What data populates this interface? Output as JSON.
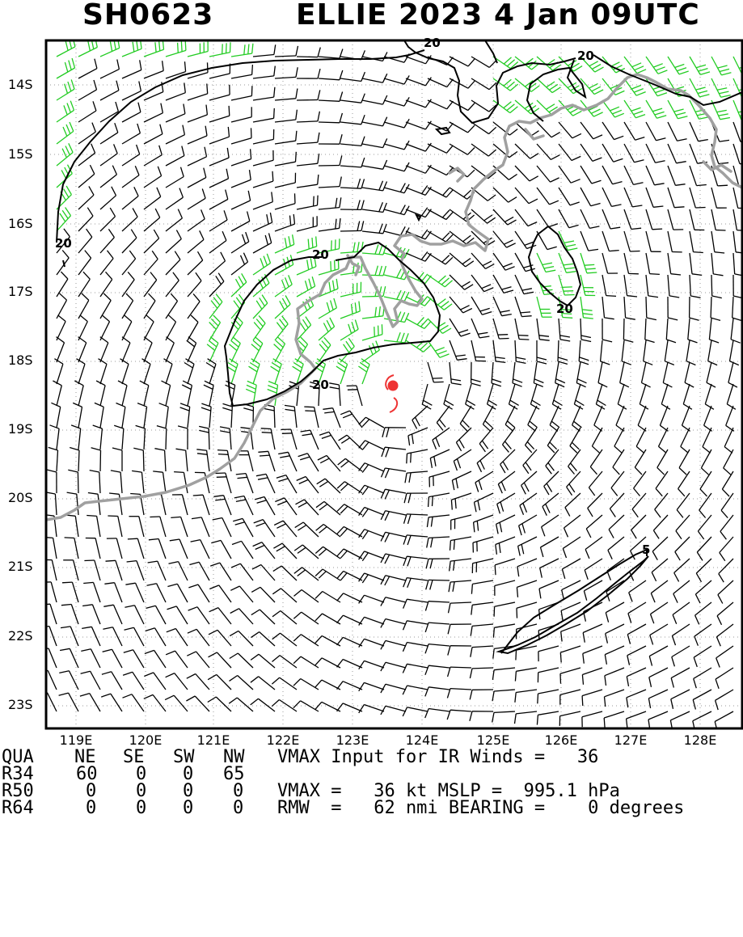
{
  "title": {
    "storm_id": "SH0623",
    "name_year": "ELLIE 2023",
    "date_time": "4 Jan 09UTC"
  },
  "map": {
    "lat_labels": [
      "14S",
      "15S",
      "16S",
      "17S",
      "18S",
      "19S",
      "20S",
      "21S",
      "22S",
      "23S"
    ],
    "lon_labels": [
      "119E",
      "120E",
      "121E",
      "122E",
      "123E",
      "124E",
      "125E",
      "126E",
      "127E",
      "128E"
    ],
    "contour_labels": [
      "20",
      "20",
      "20",
      "20",
      "20",
      "20",
      "5"
    ],
    "colors": {
      "frame": "#000000",
      "coastline": "#a0a0a0",
      "barb_strong": "#22cc22",
      "barb_weak": "#000000",
      "contour": "#000000",
      "storm_symbol": "#ee3333",
      "grid": "#9a9a9a"
    },
    "storm_icon": "tropical-cyclone-icon"
  },
  "table": {
    "header": [
      "QUA",
      "NE",
      "SE",
      "SW",
      "NW"
    ],
    "rows": [
      {
        "label": "R34",
        "values": [
          "60",
          "0",
          "0",
          "65"
        ]
      },
      {
        "label": "R50",
        "values": [
          "0",
          "0",
          "0",
          "0"
        ]
      },
      {
        "label": "R64",
        "values": [
          "0",
          "0",
          "0",
          "0"
        ]
      }
    ]
  },
  "params": {
    "line1": "VMAX Input for IR Winds =   36",
    "line2": "VMAX =   36 kt MSLP =  995.1 hPa",
    "line3": "RMW  =   62 nmi BEARING =    0 degrees"
  }
}
